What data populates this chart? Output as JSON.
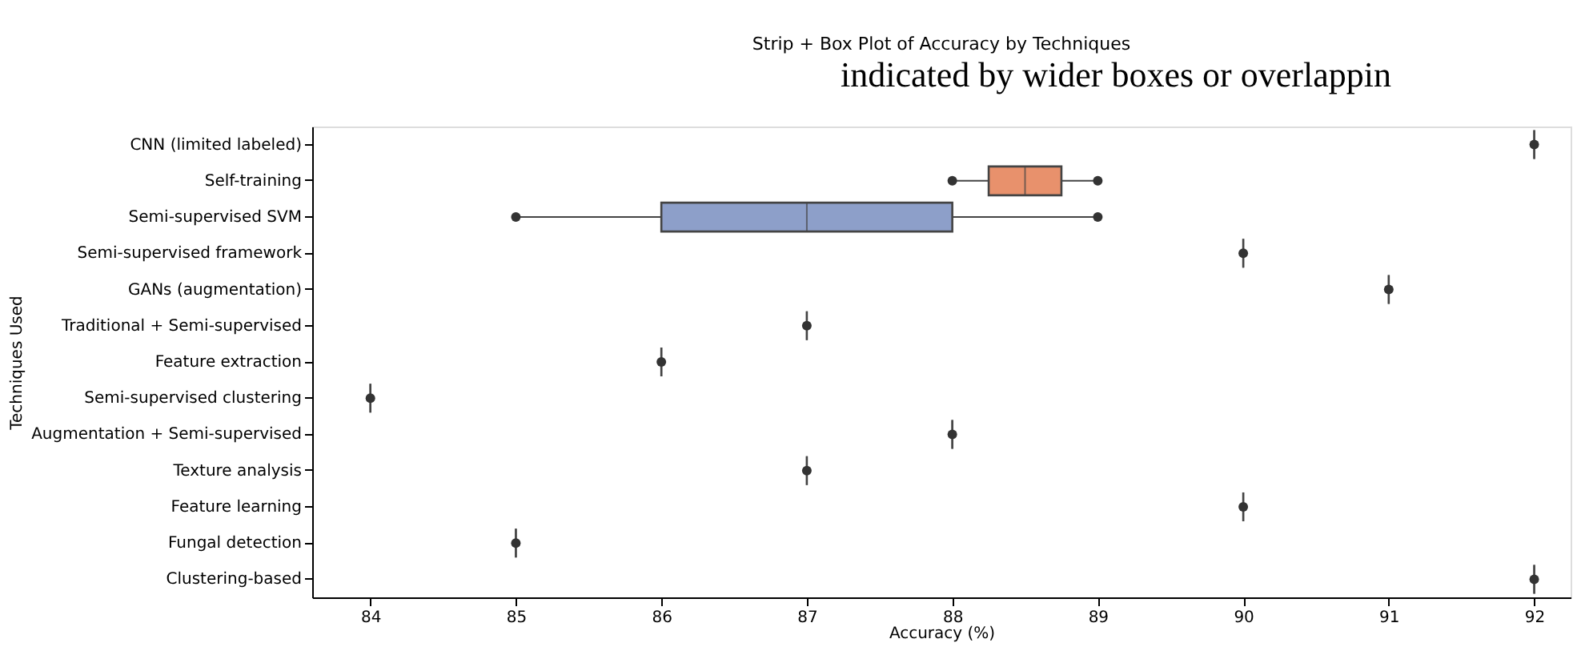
{
  "chart_data": {
    "type": "box",
    "orientation": "horizontal",
    "title": "Strip + Box Plot of Accuracy by Techniques",
    "xlabel": "Accuracy (%)",
    "ylabel": "Techniques Used",
    "annotations": [
      "indicated by wider boxes or overlappin"
    ],
    "categories": [
      "CNN (limited labeled)",
      "Self-training",
      "Semi-supervised SVM",
      "Semi-supervised framework",
      "GANs (augmentation)",
      "Traditional + Semi-supervised",
      "Feature extraction",
      "Semi-supervised clustering",
      "Augmentation + Semi-supervised",
      "Texture analysis",
      "Feature learning",
      "Fungal detection",
      "Clustering-based"
    ],
    "boxes": [
      {
        "low": 92,
        "q1": 92,
        "median": 92,
        "q3": 92,
        "high": 92
      },
      {
        "low": 88,
        "q1": 88.25,
        "median": 88.5,
        "q3": 88.75,
        "high": 89
      },
      {
        "low": 85,
        "q1": 86,
        "median": 87,
        "q3": 88,
        "high": 89
      },
      {
        "low": 90,
        "q1": 90,
        "median": 90,
        "q3": 90,
        "high": 90
      },
      {
        "low": 91,
        "q1": 91,
        "median": 91,
        "q3": 91,
        "high": 91
      },
      {
        "low": 87,
        "q1": 87,
        "median": 87,
        "q3": 87,
        "high": 87
      },
      {
        "low": 86,
        "q1": 86,
        "median": 86,
        "q3": 86,
        "high": 86
      },
      {
        "low": 84,
        "q1": 84,
        "median": 84,
        "q3": 84,
        "high": 84
      },
      {
        "low": 88,
        "q1": 88,
        "median": 88,
        "q3": 88,
        "high": 88
      },
      {
        "low": 87,
        "q1": 87,
        "median": 87,
        "q3": 87,
        "high": 87
      },
      {
        "low": 90,
        "q1": 90,
        "median": 90,
        "q3": 90,
        "high": 90
      },
      {
        "low": 85,
        "q1": 85,
        "median": 85,
        "q3": 85,
        "high": 85
      },
      {
        "low": 92,
        "q1": 92,
        "median": 92,
        "q3": 92,
        "high": 92
      }
    ],
    "colors": [
      null,
      "#e8916c",
      "#8d9fc9",
      null,
      null,
      null,
      null,
      null,
      null,
      null,
      null,
      null,
      null
    ],
    "series": [
      {
        "type": "scatter",
        "color": "#333333",
        "marker": "circle",
        "x": [
          "CNN (limited labeled)",
          "Self-training",
          "Self-training",
          "Semi-supervised SVM",
          "Semi-supervised SVM",
          "Semi-supervised framework",
          "GANs (augmentation)",
          "Traditional + Semi-supervised",
          "Feature extraction",
          "Semi-supervised clustering",
          "Augmentation + Semi-supervised",
          "Texture analysis",
          "Feature learning",
          "Fungal detection",
          "Clustering-based"
        ],
        "values": [
          92,
          88,
          89,
          85,
          89,
          90,
          91,
          87,
          86,
          84,
          88,
          87,
          90,
          85,
          92
        ]
      }
    ],
    "xlim": [
      83.6,
      92.25
    ],
    "xticks": [
      84,
      85,
      86,
      87,
      88,
      89,
      90,
      91,
      92
    ],
    "grid": false,
    "legend": false
  }
}
